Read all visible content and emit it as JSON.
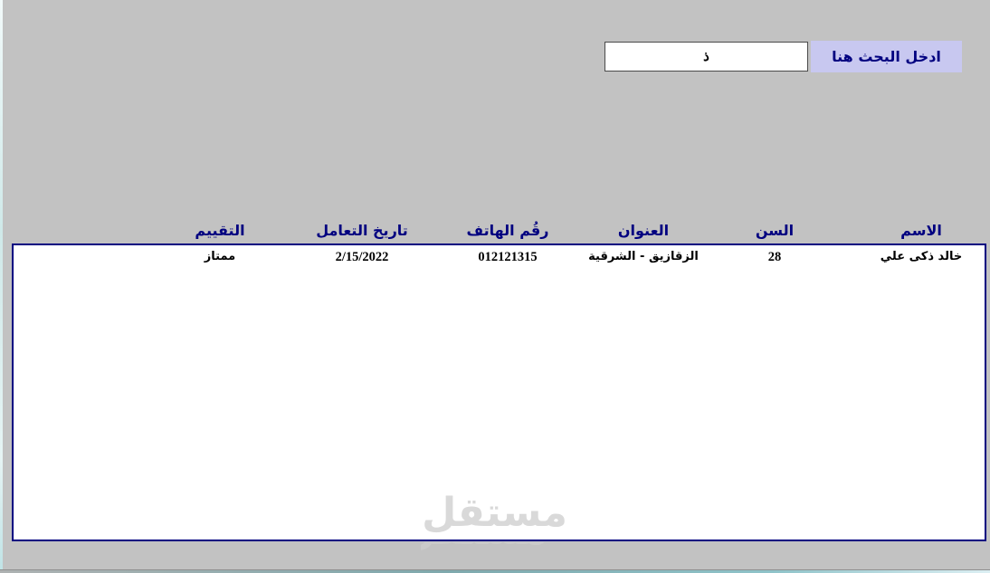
{
  "search": {
    "label": "ادخل البحث هنا",
    "value": "ذ"
  },
  "table": {
    "columns": [
      {
        "key": "name",
        "label": "الاسم"
      },
      {
        "key": "age",
        "label": "السن"
      },
      {
        "key": "address",
        "label": "العنوان"
      },
      {
        "key": "phone",
        "label": "رقُم الهاتف"
      },
      {
        "key": "date",
        "label": "تاريخ التعامل"
      },
      {
        "key": "rating",
        "label": "التقييم"
      }
    ],
    "rows": [
      {
        "name": "خالد ذكى علي",
        "age": "28",
        "address": "الزقازيق - الشرقية",
        "phone": "012121315",
        "date": "2/15/2022",
        "rating": "ممتاز"
      }
    ]
  },
  "watermark": {
    "text": "مستقل"
  },
  "colors": {
    "background": "#c2c2c2",
    "label_background": "#c8c8f0",
    "header_text": "#000080",
    "table_border": "#000080",
    "watermark": "#d9d9d9"
  }
}
